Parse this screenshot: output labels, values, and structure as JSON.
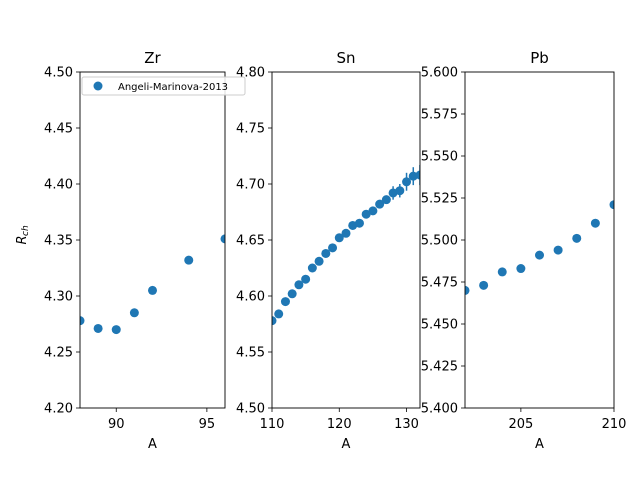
{
  "colors": {
    "marker": "#1f77b4",
    "axis": "#000000",
    "legend_border": "#cccccc"
  },
  "figure": {
    "ylabel": "R",
    "ylabel_sub": "ch"
  },
  "legend": {
    "label": "Angeli-Marinova-2013",
    "placement": "upper-left of first panel"
  },
  "chart_data": [
    {
      "type": "scatter",
      "title": "Zr",
      "xlabel": "A",
      "ylabel": "R_ch",
      "xlim": [
        88,
        96
      ],
      "ylim": [
        4.2,
        4.5
      ],
      "xticks": [
        "90",
        "95"
      ],
      "yticks": [
        "4.20",
        "4.25",
        "4.30",
        "4.35",
        "4.40",
        "4.45",
        "4.50"
      ],
      "series": [
        {
          "name": "Angeli-Marinova-2013",
          "x": [
            88,
            89,
            90,
            91,
            92,
            94,
            96
          ],
          "y": [
            4.278,
            4.271,
            4.27,
            4.285,
            4.305,
            4.332,
            4.351
          ]
        }
      ]
    },
    {
      "type": "scatter",
      "title": "Sn",
      "xlabel": "A",
      "ylabel": "R_ch",
      "xlim": [
        110,
        132
      ],
      "ylim": [
        4.5,
        4.8
      ],
      "xticks": [
        "110",
        "120",
        "130"
      ],
      "yticks": [
        "4.50",
        "4.55",
        "4.60",
        "4.65",
        "4.70",
        "4.75",
        "4.80"
      ],
      "series": [
        {
          "name": "Angeli-Marinova-2013",
          "x": [
            110,
            111,
            112,
            113,
            114,
            115,
            116,
            117,
            118,
            119,
            120,
            121,
            122,
            123,
            124,
            125,
            126,
            127,
            128,
            129,
            130,
            131,
            132
          ],
          "y": [
            4.578,
            4.584,
            4.595,
            4.602,
            4.61,
            4.615,
            4.625,
            4.631,
            4.638,
            4.643,
            4.652,
            4.656,
            4.663,
            4.665,
            4.673,
            4.676,
            4.682,
            4.686,
            4.692,
            4.694,
            4.702,
            4.707,
            4.708
          ],
          "yerr": [
            0,
            0,
            0,
            0,
            0,
            0,
            0,
            0,
            0,
            0,
            0,
            0,
            0,
            0,
            0,
            0,
            0,
            0,
            0.006,
            0.006,
            0.008,
            0.008,
            0.009
          ]
        }
      ]
    },
    {
      "type": "scatter",
      "title": "Pb",
      "xlabel": "A",
      "ylabel": "R_ch",
      "xlim": [
        202,
        210
      ],
      "ylim": [
        5.4,
        5.6
      ],
      "xticks": [
        "205",
        "210"
      ],
      "yticks": [
        "5.400",
        "5.425",
        "5.450",
        "5.475",
        "5.500",
        "5.525",
        "5.550",
        "5.575",
        "5.600"
      ],
      "series": [
        {
          "name": "Angeli-Marinova-2013",
          "x": [
            202,
            203,
            204,
            205,
            206,
            207,
            208,
            209,
            210
          ],
          "y": [
            5.47,
            5.473,
            5.481,
            5.483,
            5.491,
            5.494,
            5.501,
            5.51,
            5.521
          ]
        }
      ]
    }
  ]
}
